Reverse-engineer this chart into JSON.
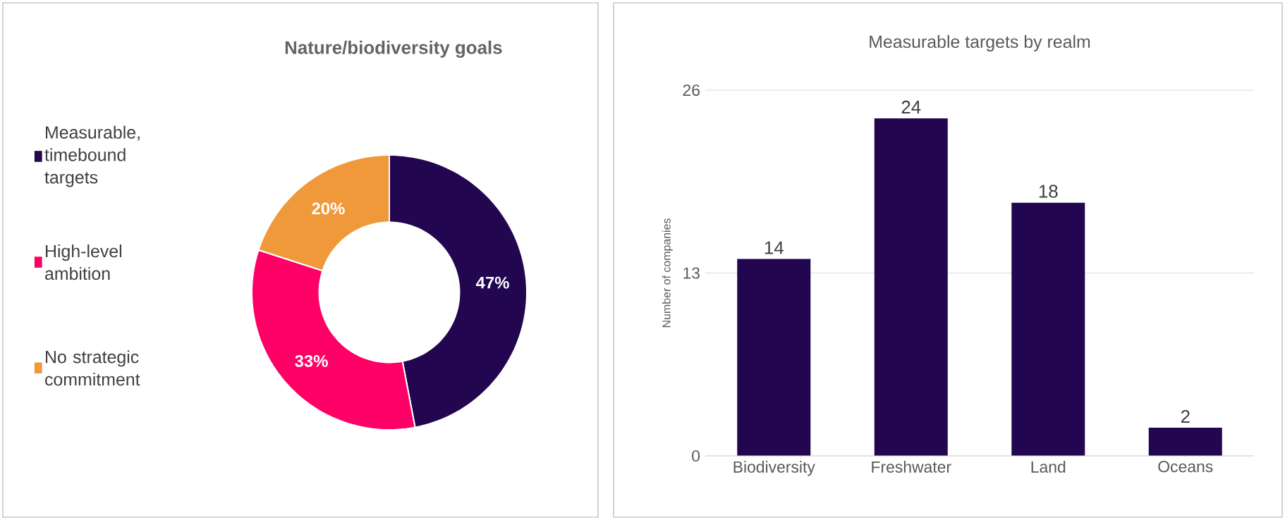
{
  "chart_data": [
    {
      "type": "donut",
      "title": "Nature/biodiversity goals",
      "categories": [
        "Measurable, timebound targets",
        "High-level ambition",
        "No strategic commitment"
      ],
      "values": [
        47,
        33,
        20
      ],
      "colors": [
        "#22064f",
        "#ff0066",
        "#f0993a"
      ],
      "value_labels": [
        "47%",
        "33%",
        "20%"
      ],
      "legend": "left"
    },
    {
      "type": "bar",
      "title": "Measurable targets by realm",
      "ylabel": "Number of companies",
      "categories": [
        "Biodiversity",
        "Freshwater",
        "Land",
        "Oceans"
      ],
      "values": [
        14,
        24,
        18,
        2
      ],
      "color": "#22064f",
      "ylim": [
        0,
        26
      ],
      "yticks": [
        0,
        13,
        26
      ],
      "grid": "y",
      "data_labels": true
    }
  ]
}
